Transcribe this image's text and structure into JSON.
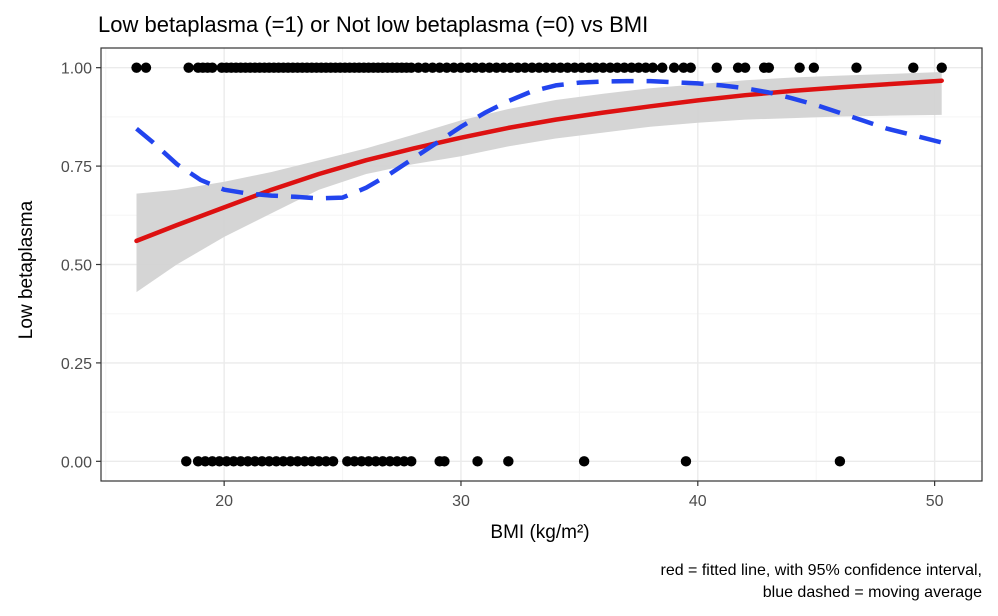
{
  "chart_data": {
    "type": "scatter",
    "title": "Low betaplasma (=1) or Not low betaplasma (=0) vs BMI",
    "xlabel": "BMI (kg/m²)",
    "ylabel": "Low betaplasma",
    "caption_lines": [
      "red = fitted line, with 95% confidence interval,",
      "blue dashed = moving average"
    ],
    "xlim": [
      14.8,
      52.0
    ],
    "ylim": [
      -0.05,
      1.05
    ],
    "x_ticks": [
      20,
      30,
      40,
      50
    ],
    "y_ticks": [
      0.0,
      0.25,
      0.5,
      0.75,
      1.0
    ],
    "x_tick_labels": [
      "20",
      "30",
      "40",
      "50"
    ],
    "y_tick_labels": [
      "0.00",
      "0.25",
      "0.50",
      "0.75",
      "1.00"
    ],
    "grid": true,
    "colors": {
      "points": "#000000",
      "fitted_line": "#dd1111",
      "moving_average": "#2244ee",
      "confidence_band": "#d3d3d3",
      "grid_major": "#ebebeb",
      "grid_minor": "#f5f5f5",
      "panel_border": "#333333"
    },
    "points_y1_x": [
      16.3,
      16.7,
      18.5,
      18.9,
      19.1,
      19.3,
      19.5,
      19.9,
      20.1,
      20.3,
      20.5,
      20.7,
      20.9,
      21.1,
      21.3,
      21.5,
      21.7,
      21.9,
      22.1,
      22.3,
      22.5,
      22.7,
      22.9,
      23.1,
      23.3,
      23.5,
      23.7,
      23.9,
      24.1,
      24.3,
      24.5,
      24.7,
      24.9,
      25.1,
      25.3,
      25.5,
      25.7,
      25.9,
      26.1,
      26.3,
      26.5,
      26.7,
      26.9,
      27.1,
      27.3,
      27.5,
      27.7,
      27.9,
      28.2,
      28.5,
      28.8,
      29.1,
      29.4,
      29.7,
      30.0,
      30.3,
      30.6,
      30.9,
      31.2,
      31.5,
      31.8,
      32.1,
      32.4,
      32.7,
      33.0,
      33.3,
      33.6,
      33.9,
      34.2,
      34.5,
      34.8,
      35.1,
      35.4,
      35.7,
      36.0,
      36.3,
      36.6,
      36.9,
      37.2,
      37.5,
      37.8,
      38.1,
      38.5,
      39.0,
      39.4,
      39.7,
      40.8,
      41.7,
      42.0,
      42.8,
      43.0,
      44.3,
      44.9,
      46.7,
      49.1,
      50.3
    ],
    "points_y0_x": [
      18.4,
      18.9,
      19.2,
      19.5,
      19.8,
      20.1,
      20.4,
      20.7,
      21.0,
      21.3,
      21.6,
      21.9,
      22.2,
      22.5,
      22.8,
      23.1,
      23.4,
      23.7,
      24.0,
      24.3,
      24.6,
      25.2,
      25.5,
      25.8,
      26.1,
      26.4,
      26.7,
      27.0,
      27.3,
      27.6,
      27.9,
      29.1,
      29.3,
      30.7,
      32.0,
      35.2,
      39.5,
      46.0
    ],
    "fitted_line": {
      "x": [
        16.3,
        18,
        20,
        22,
        24,
        26,
        28,
        30,
        32,
        34,
        36,
        38,
        40,
        42,
        44,
        46,
        48,
        50.3
      ],
      "y": [
        0.56,
        0.6,
        0.645,
        0.69,
        0.73,
        0.765,
        0.795,
        0.822,
        0.847,
        0.868,
        0.886,
        0.902,
        0.917,
        0.93,
        0.941,
        0.95,
        0.958,
        0.967
      ],
      "ci_lower": [
        0.43,
        0.5,
        0.57,
        0.63,
        0.69,
        0.73,
        0.755,
        0.775,
        0.8,
        0.82,
        0.835,
        0.85,
        0.86,
        0.868,
        0.872,
        0.876,
        0.878,
        0.88
      ],
      "ci_upper": [
        0.68,
        0.69,
        0.71,
        0.735,
        0.765,
        0.795,
        0.83,
        0.866,
        0.895,
        0.918,
        0.934,
        0.948,
        0.958,
        0.968,
        0.975,
        0.98,
        0.984,
        0.989
      ]
    },
    "moving_average": {
      "x": [
        16.3,
        17,
        18,
        19,
        20,
        21,
        22,
        23,
        24,
        25,
        26,
        27,
        28,
        29,
        30,
        31,
        32,
        33,
        34,
        35,
        36,
        37,
        38,
        39,
        40,
        41,
        42,
        43,
        44,
        45,
        46,
        47,
        48,
        49,
        50.3
      ],
      "y": [
        0.845,
        0.81,
        0.755,
        0.715,
        0.69,
        0.68,
        0.675,
        0.672,
        0.668,
        0.67,
        0.695,
        0.73,
        0.77,
        0.81,
        0.85,
        0.885,
        0.915,
        0.94,
        0.955,
        0.962,
        0.965,
        0.966,
        0.966,
        0.963,
        0.96,
        0.955,
        0.948,
        0.937,
        0.922,
        0.905,
        0.885,
        0.865,
        0.845,
        0.83,
        0.81
      ]
    }
  }
}
